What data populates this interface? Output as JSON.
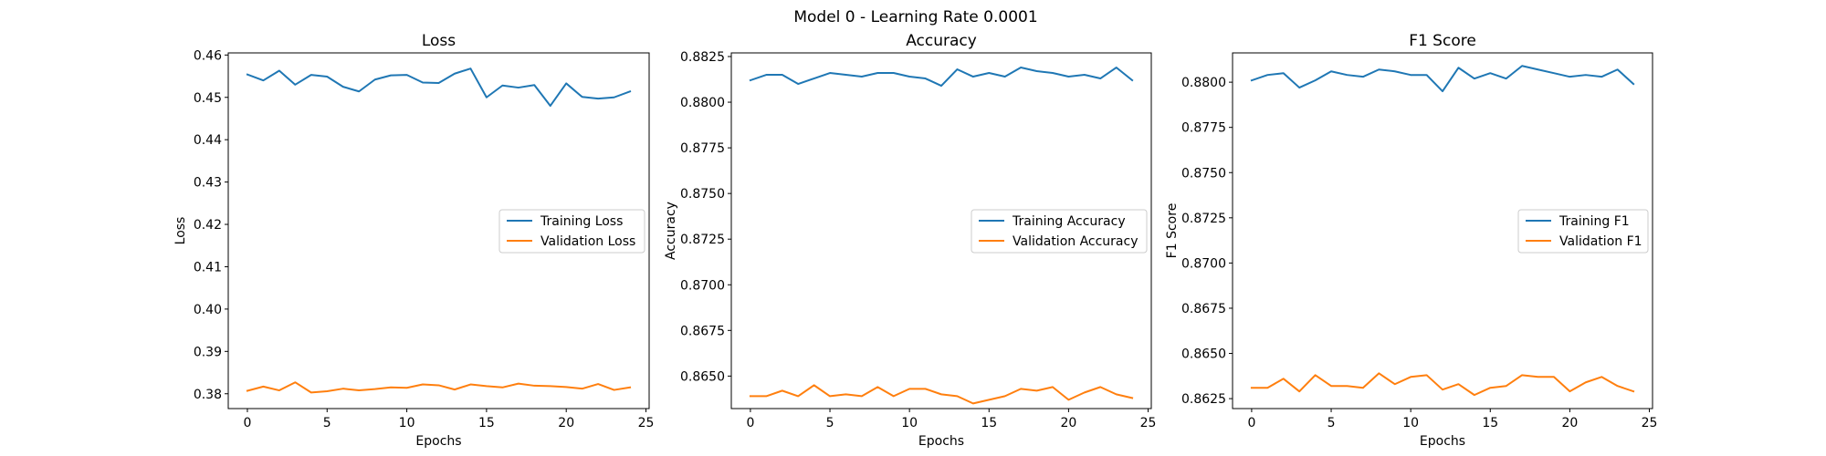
{
  "suptitle": "Model 0 - Learning Rate 0.0001",
  "colors": {
    "training": "#1f77b4",
    "validation": "#ff7f0e"
  },
  "chart_data": [
    {
      "type": "line",
      "title": "Loss",
      "xlabel": "Epochs",
      "ylabel": "Loss",
      "xlim": [
        -1.2,
        25.2
      ],
      "ylim": [
        0.3765,
        0.4605
      ],
      "xticks": [
        0,
        5,
        10,
        15,
        20,
        25
      ],
      "yticks": [
        0.38,
        0.39,
        0.4,
        0.41,
        0.42,
        0.43,
        0.44,
        0.45,
        0.46
      ],
      "ytick_labels": [
        "0.38",
        "0.39",
        "0.40",
        "0.41",
        "0.42",
        "0.43",
        "0.44",
        "0.45",
        "0.46"
      ],
      "legend_position": "center-right",
      "x": [
        0,
        1,
        2,
        3,
        4,
        5,
        6,
        7,
        8,
        9,
        10,
        11,
        12,
        13,
        14,
        15,
        16,
        17,
        18,
        19,
        20,
        21,
        22,
        23,
        24
      ],
      "series": [
        {
          "name": "Training Loss",
          "color": "#1f77b4",
          "values": [
            0.4554,
            0.454,
            0.4563,
            0.453,
            0.4553,
            0.4549,
            0.4525,
            0.4514,
            0.4542,
            0.4552,
            0.4553,
            0.4535,
            0.4534,
            0.4556,
            0.4568,
            0.45,
            0.4528,
            0.4523,
            0.4529,
            0.448,
            0.4533,
            0.4501,
            0.4497,
            0.45,
            0.4514
          ]
        },
        {
          "name": "Validation Loss",
          "color": "#ff7f0e",
          "values": [
            0.3807,
            0.3817,
            0.3808,
            0.3827,
            0.3803,
            0.3806,
            0.3812,
            0.3808,
            0.3811,
            0.3815,
            0.3814,
            0.3822,
            0.382,
            0.381,
            0.3822,
            0.3818,
            0.3815,
            0.3824,
            0.3819,
            0.3818,
            0.3816,
            0.3812,
            0.3823,
            0.3809,
            0.3815
          ]
        }
      ]
    },
    {
      "type": "line",
      "title": "Accuracy",
      "xlabel": "Epochs",
      "ylabel": "Accuracy",
      "xlim": [
        -1.2,
        25.2
      ],
      "ylim": [
        0.86322,
        0.8827
      ],
      "xticks": [
        0,
        5,
        10,
        15,
        20,
        25
      ],
      "yticks": [
        0.865,
        0.8675,
        0.87,
        0.8725,
        0.875,
        0.8775,
        0.88,
        0.8825
      ],
      "ytick_labels": [
        "0.8650",
        "0.8675",
        "0.8700",
        "0.8725",
        "0.8750",
        "0.8775",
        "0.8800",
        "0.8825"
      ],
      "legend_position": "center-right",
      "x": [
        0,
        1,
        2,
        3,
        4,
        5,
        6,
        7,
        8,
        9,
        10,
        11,
        12,
        13,
        14,
        15,
        16,
        17,
        18,
        19,
        20,
        21,
        22,
        23,
        24
      ],
      "series": [
        {
          "name": "Training Accuracy",
          "color": "#1f77b4",
          "values": [
            0.8812,
            0.8815,
            0.8815,
            0.881,
            0.8813,
            0.8816,
            0.8815,
            0.8814,
            0.8816,
            0.8816,
            0.8814,
            0.8813,
            0.8809,
            0.8818,
            0.8814,
            0.8816,
            0.8814,
            0.8819,
            0.8817,
            0.8816,
            0.8814,
            0.8815,
            0.8813,
            0.8819,
            0.8812
          ]
        },
        {
          "name": "Validation Accuracy",
          "color": "#ff7f0e",
          "values": [
            0.8639,
            0.8639,
            0.8642,
            0.8639,
            0.8645,
            0.8639,
            0.864,
            0.8639,
            0.8644,
            0.8639,
            0.8643,
            0.8643,
            0.864,
            0.8639,
            0.8635,
            0.8637,
            0.8639,
            0.8643,
            0.8642,
            0.8644,
            0.8637,
            0.8641,
            0.8644,
            0.864,
            0.8638
          ]
        }
      ]
    },
    {
      "type": "line",
      "title": "F1 Score",
      "xlabel": "Epochs",
      "ylabel": "F1 Score",
      "xlim": [
        -1.2,
        25.2
      ],
      "ylim": [
        0.86195,
        0.88162
      ],
      "xticks": [
        0,
        5,
        10,
        15,
        20,
        25
      ],
      "yticks": [
        0.8625,
        0.865,
        0.8675,
        0.87,
        0.8725,
        0.875,
        0.8775,
        0.88
      ],
      "ytick_labels": [
        "0.8625",
        "0.8650",
        "0.8675",
        "0.8700",
        "0.8725",
        "0.8750",
        "0.8775",
        "0.8800"
      ],
      "legend_position": "center-right",
      "x": [
        0,
        1,
        2,
        3,
        4,
        5,
        6,
        7,
        8,
        9,
        10,
        11,
        12,
        13,
        14,
        15,
        16,
        17,
        18,
        19,
        20,
        21,
        22,
        23,
        24
      ],
      "series": [
        {
          "name": "Training F1",
          "color": "#1f77b4",
          "values": [
            0.8801,
            0.8804,
            0.8805,
            0.8797,
            0.8801,
            0.8806,
            0.8804,
            0.8803,
            0.8807,
            0.8806,
            0.8804,
            0.8804,
            0.8795,
            0.8808,
            0.8802,
            0.8805,
            0.8802,
            0.8809,
            0.8807,
            0.8805,
            0.8803,
            0.8804,
            0.8803,
            0.8807,
            0.8799
          ]
        },
        {
          "name": "Validation F1",
          "color": "#ff7f0e",
          "values": [
            0.8631,
            0.8631,
            0.8636,
            0.8629,
            0.8638,
            0.8632,
            0.8632,
            0.8631,
            0.8639,
            0.8633,
            0.8637,
            0.8638,
            0.863,
            0.8633,
            0.8627,
            0.8631,
            0.8632,
            0.8638,
            0.8637,
            0.8637,
            0.8629,
            0.8634,
            0.8637,
            0.8632,
            0.8629
          ]
        }
      ]
    }
  ]
}
